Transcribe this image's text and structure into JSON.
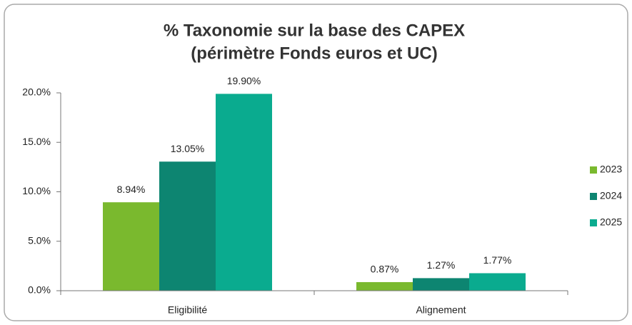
{
  "chart_data": {
    "type": "bar",
    "title": "% Taxonomie sur la base des CAPEX",
    "subtitle": "(périmètre Fonds euros et UC)",
    "categories": [
      "Eligibilité",
      "Alignement"
    ],
    "series": [
      {
        "name": "2023",
        "color": "#7ab92e",
        "values": [
          8.94,
          0.87
        ],
        "value_labels": [
          "8.94%",
          "0.87%"
        ]
      },
      {
        "name": "2024",
        "color": "#0d8571",
        "values": [
          13.05,
          1.27
        ],
        "value_labels": [
          "13.05%",
          "1.27%"
        ]
      },
      {
        "name": "2025",
        "color": "#0aab8f",
        "values": [
          19.9,
          1.77
        ],
        "value_labels": [
          "19.90%",
          "1.77%"
        ]
      }
    ],
    "ylim": [
      0,
      20
    ],
    "yticks": [
      {
        "value": 0,
        "label": "0.0%"
      },
      {
        "value": 5,
        "label": "5.0%"
      },
      {
        "value": 10,
        "label": "10.0%"
      },
      {
        "value": 15,
        "label": "15.0%"
      },
      {
        "value": 20,
        "label": "20.0%"
      }
    ],
    "grid": false,
    "legend": "right"
  }
}
